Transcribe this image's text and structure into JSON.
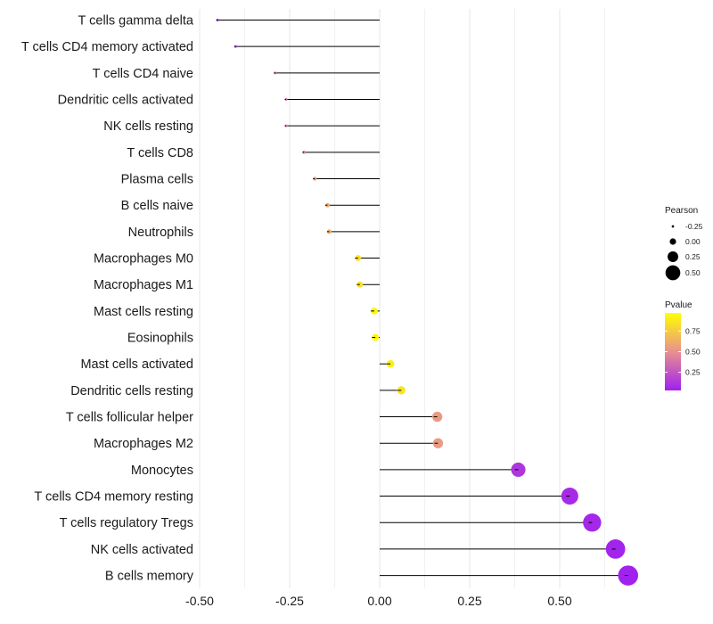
{
  "chart_data": {
    "type": "lollipop",
    "title": "",
    "xlabel": "",
    "ylabel": "",
    "xlim": [
      -0.5,
      0.7
    ],
    "x_ticks": [
      -0.5,
      -0.25,
      0.0,
      0.25,
      0.5
    ],
    "x_tick_labels": [
      "-0.50",
      "-0.25",
      "0.00",
      "0.25",
      "0.50"
    ],
    "grid": true,
    "categories": [
      "T cells gamma delta",
      "T cells CD4 memory activated",
      "T cells CD4 naive",
      "Dendritic cells activated",
      "NK cells resting",
      "T cells CD8",
      "Plasma cells",
      "B cells naive",
      "Neutrophils",
      "Macrophages M0",
      "Macrophages M1",
      "Mast cells resting",
      "Eosinophils",
      "Mast cells activated",
      "Dendritic cells resting",
      "T cells follicular helper",
      "Macrophages M2",
      "Monocytes",
      "T cells CD4 memory resting",
      "T cells regulatory  Tregs",
      "NK cells activated",
      "B cells memory"
    ],
    "pearson": [
      -0.45,
      -0.4,
      -0.29,
      -0.26,
      -0.26,
      -0.21,
      -0.18,
      -0.145,
      -0.14,
      -0.06,
      -0.055,
      -0.015,
      -0.012,
      0.03,
      0.06,
      0.16,
      0.162,
      0.385,
      0.528,
      0.59,
      0.655,
      0.69
    ],
    "pvalue": [
      0.05,
      0.1,
      0.3,
      0.35,
      0.35,
      0.45,
      0.55,
      0.62,
      0.63,
      0.85,
      0.87,
      0.96,
      0.96,
      0.93,
      0.88,
      0.55,
      0.55,
      0.1,
      0.05,
      0.03,
      0.02,
      0.01
    ],
    "legend": {
      "size_title": "Pearson",
      "size_values": [
        -0.25,
        0.0,
        0.25,
        0.5
      ],
      "size_labels": [
        "-0.25",
        "0.00",
        "0.25",
        "0.50"
      ],
      "color_title": "Pvalue",
      "color_ticks": [
        0.75,
        0.5,
        0.25
      ],
      "color_tick_labels": [
        "0.75",
        "0.50",
        "0.25"
      ],
      "color_low": "#a020f0",
      "color_mid": "#e89090",
      "color_high": "#ffff00",
      "placement": "right"
    }
  }
}
